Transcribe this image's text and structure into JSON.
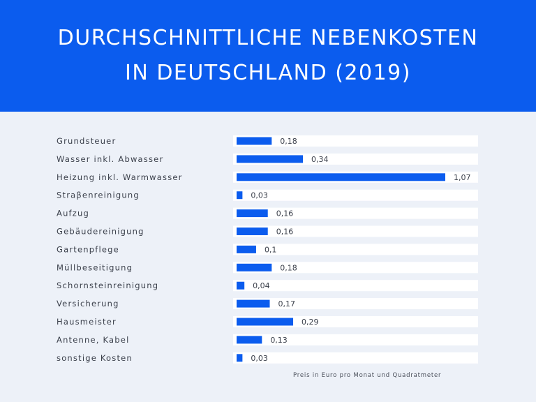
{
  "header": {
    "title_line1": "DURCHSCHNITTLICHE NEBENKOSTEN",
    "title_line2": "IN DEUTSCHLAND (2019)"
  },
  "colors": {
    "accent": "#0b5cee",
    "background": "#edf1f8",
    "track": "#ffffff"
  },
  "chart_data": {
    "type": "bar",
    "orientation": "horizontal",
    "title": "DURCHSCHNITTLICHE NEBENKOSTEN IN DEUTSCHLAND (2019)",
    "categories": [
      "Grundsteuer",
      "Wasser inkl. Abwasser",
      "Heizung inkl. Warmwasser",
      "Straβenreinigung",
      "Aufzug",
      "Gebäudereinigung",
      "Gartenpflege",
      "Müllbeseitigung",
      "Schornsteinreinigung",
      "Versicherung",
      "Hausmeister",
      "Antenne, Kabel",
      "sonstige Kosten"
    ],
    "values": [
      0.18,
      0.34,
      1.07,
      0.03,
      0.16,
      0.16,
      0.1,
      0.18,
      0.04,
      0.17,
      0.29,
      0.13,
      0.03
    ],
    "value_labels": [
      "0,18",
      "0,34",
      "1,07",
      "0,03",
      "0,16",
      "0,16",
      "0,1",
      "0,18",
      "0,04",
      "0,17",
      "0,29",
      "0,13",
      "0,03"
    ],
    "xlim": [
      0,
      1.07
    ],
    "note": "Preis in Euro pro Monat und Quadratmeter"
  }
}
